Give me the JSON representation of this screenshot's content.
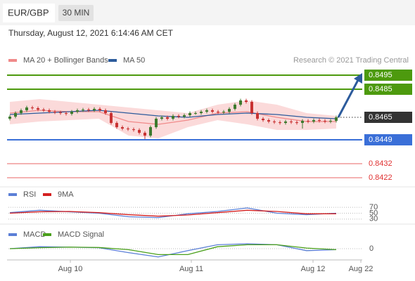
{
  "header": {
    "symbol": "EUR/GBP",
    "timeframe": "30 MIN",
    "timestamp": "Thursday, August 12, 2021 6:14:46 AM CET"
  },
  "chart_data": [
    {
      "type": "candlestick",
      "source": "Research © 2021 Trading Central",
      "ylim": [
        0.8419,
        0.8501
      ],
      "open": [
        0.8464,
        0.84655,
        0.8468,
        0.847,
        0.8472,
        0.84715,
        0.84705,
        0.847,
        0.8469,
        0.84685,
        0.8468,
        0.84675,
        0.8469,
        0.847,
        0.84705,
        0.847,
        0.8471,
        0.847,
        0.8468,
        0.8461,
        0.8458,
        0.8457,
        0.84565,
        0.8456,
        0.8454,
        0.8452,
        0.8458,
        0.8464,
        0.8465,
        0.8464,
        0.8466,
        0.84655,
        0.84665,
        0.8468,
        0.8468,
        0.8469,
        0.847,
        0.8469,
        0.84685,
        0.8469,
        0.8471,
        0.8474,
        0.8477,
        0.8476,
        0.8468,
        0.8464,
        0.8463,
        0.8462,
        0.84615,
        0.8461,
        0.8462,
        0.84615,
        0.8461,
        0.84625,
        0.8462,
        0.8463,
        0.84625,
        0.8462,
        0.84625
      ],
      "high": [
        0.84667,
        0.84692,
        0.84712,
        0.84732,
        0.84732,
        0.84727,
        0.84717,
        0.84712,
        0.84702,
        0.84697,
        0.84692,
        0.84702,
        0.84712,
        0.84717,
        0.84717,
        0.84722,
        0.84722,
        0.84712,
        0.84692,
        0.84622,
        0.84592,
        0.84582,
        0.84577,
        0.84572,
        0.84552,
        0.84592,
        0.84652,
        0.84662,
        0.84662,
        0.84672,
        0.84672,
        0.84677,
        0.84692,
        0.84692,
        0.84702,
        0.84712,
        0.84712,
        0.84702,
        0.84702,
        0.84722,
        0.84752,
        0.84782,
        0.84782,
        0.84772,
        0.84692,
        0.84652,
        0.84642,
        0.84632,
        0.84627,
        0.84632,
        0.84632,
        0.84627,
        0.84637,
        0.84637,
        0.84642,
        0.84642,
        0.84637,
        0.84637,
        0.84662
      ],
      "low": [
        0.84628,
        0.84643,
        0.84668,
        0.84688,
        0.84703,
        0.84693,
        0.84688,
        0.84678,
        0.84673,
        0.84668,
        0.84663,
        0.84663,
        0.84678,
        0.84688,
        0.84688,
        0.84688,
        0.84688,
        0.84668,
        0.84598,
        0.84568,
        0.84558,
        0.84553,
        0.84548,
        0.84528,
        0.84495,
        0.84508,
        0.84568,
        0.84628,
        0.84628,
        0.84628,
        0.84643,
        0.84643,
        0.84653,
        0.84668,
        0.84668,
        0.84678,
        0.84678,
        0.84673,
        0.84673,
        0.84678,
        0.84698,
        0.84728,
        0.84748,
        0.84668,
        0.84628,
        0.84618,
        0.84608,
        0.84603,
        0.84598,
        0.84598,
        0.84603,
        0.84598,
        0.8457,
        0.84608,
        0.84608,
        0.84613,
        0.84608,
        0.84608,
        0.84613
      ],
      "close": [
        0.84655,
        0.8468,
        0.847,
        0.8472,
        0.84715,
        0.84705,
        0.847,
        0.8469,
        0.84685,
        0.8468,
        0.84675,
        0.8469,
        0.847,
        0.84705,
        0.847,
        0.8471,
        0.847,
        0.8468,
        0.8461,
        0.8458,
        0.8457,
        0.84565,
        0.8456,
        0.8454,
        0.8452,
        0.8458,
        0.8464,
        0.8465,
        0.8464,
        0.8466,
        0.84655,
        0.84665,
        0.8468,
        0.8468,
        0.8469,
        0.847,
        0.8469,
        0.84685,
        0.8469,
        0.8471,
        0.8474,
        0.8477,
        0.8476,
        0.8468,
        0.8464,
        0.8463,
        0.8462,
        0.84615,
        0.8461,
        0.8462,
        0.84615,
        0.8461,
        0.84625,
        0.8462,
        0.8463,
        0.84625,
        0.8462,
        0.84625,
        0.8465
      ],
      "up_color": "#3d7a2e",
      "down_color": "#c83232",
      "bands": {
        "upper": [
          0.8476,
          0.8478,
          0.8476,
          0.8474,
          0.8472,
          0.847,
          0.8468,
          0.8474,
          0.8477,
          0.8474,
          0.8468,
          0.8466
        ],
        "lower": [
          0.846,
          0.8462,
          0.8463,
          0.8464,
          0.8452,
          0.845,
          0.8458,
          0.8463,
          0.846,
          0.8456,
          0.8456,
          0.8457
        ],
        "color": "#fbdada"
      },
      "series": [
        {
          "name": "MA 20 + Bollinger Bands",
          "color": "#f08a8a",
          "values": [
            0.8468,
            0.847,
            0.8469,
            0.8469,
            0.8462,
            0.846,
            0.8463,
            0.8468,
            0.8469,
            0.8465,
            0.8462,
            0.8462
          ]
        },
        {
          "name": "MA 50",
          "color": "#2c5b9c",
          "values": [
            0.8467,
            0.8468,
            0.8469,
            0.847,
            0.8468,
            0.8466,
            0.8465,
            0.8467,
            0.8468,
            0.8467,
            0.8465,
            0.8464
          ]
        }
      ],
      "levels": [
        {
          "value": 0.8495,
          "color": "#4d9a0e",
          "box": true,
          "line": "solid"
        },
        {
          "value": 0.8485,
          "color": "#4d9a0e",
          "box": true,
          "line": "solid"
        },
        {
          "value": 0.8465,
          "color": "#333333",
          "box": true,
          "line": "dotted"
        },
        {
          "value": 0.8449,
          "color": "#3a6fd8",
          "box": true,
          "line": "solid"
        },
        {
          "value": 0.8432,
          "color": "#e03030",
          "box": false,
          "line": "thin"
        },
        {
          "value": 0.8422,
          "color": "#e03030",
          "box": false,
          "line": "thin"
        }
      ]
    },
    {
      "type": "line",
      "ylim": [
        20,
        80
      ],
      "yticks": [
        70,
        50,
        30
      ],
      "series": [
        {
          "name": "RSI",
          "color": "#5b7fd6",
          "values": [
            52,
            60,
            55,
            50,
            38,
            35,
            48,
            56,
            68,
            50,
            45,
            50
          ]
        },
        {
          "name": "9MA",
          "color": "#d42020",
          "values": [
            50,
            55,
            56,
            52,
            45,
            40,
            44,
            52,
            60,
            56,
            48,
            48
          ]
        }
      ]
    },
    {
      "type": "line",
      "ylim": [
        -0.0005,
        0.0005
      ],
      "yticks": [
        0
      ],
      "series": [
        {
          "name": "MACD",
          "color": "#5b7fd6",
          "values": [
            0,
            0.0001,
            8e-05,
            5e-05,
            -0.0002,
            -0.00042,
            -0.0001,
            0.0002,
            0.00025,
            0.0002,
            -0.0001,
            -5e-05
          ]
        },
        {
          "name": "MACD Signal",
          "color": "#4aa01a",
          "values": [
            0,
            5e-05,
            8e-05,
            6e-05,
            -5e-05,
            -0.0003,
            -0.0003,
            0.0001,
            0.0002,
            0.0002,
            3e-05,
            -5e-05
          ]
        }
      ],
      "xticks": [
        "Aug 10",
        "Aug 11",
        "Aug 12",
        "Aug 22"
      ]
    }
  ]
}
